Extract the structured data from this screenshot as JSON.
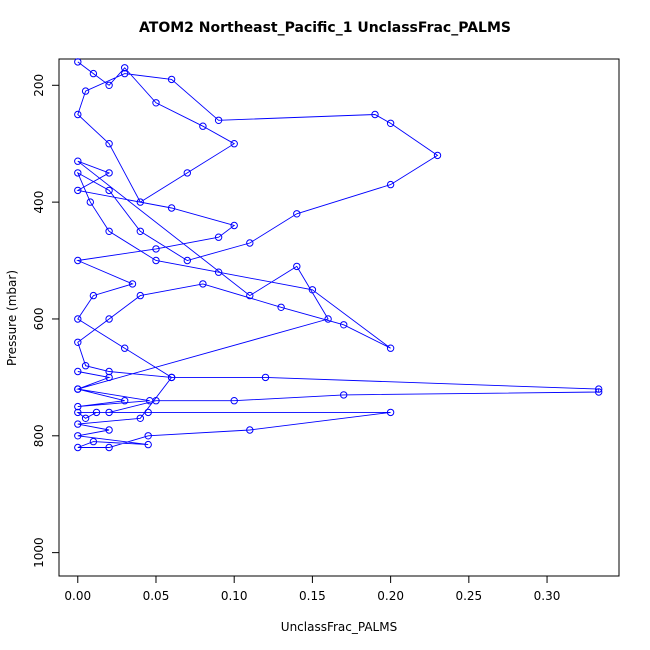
{
  "chart_data": {
    "type": "scatter",
    "title": "ATOM2 Northeast_Pacific_1 UnclassFrac_PALMS",
    "xlabel": "UnclassFrac_PALMS",
    "ylabel": "Pressure (mbar)",
    "xlim": [
      -0.012,
      0.346
    ],
    "ylim": [
      1040,
      155
    ],
    "y_reversed": true,
    "x_ticks": [
      "0.00",
      "0.05",
      "0.10",
      "0.15",
      "0.20",
      "0.25",
      "0.30"
    ],
    "y_ticks": [
      "200",
      "400",
      "600",
      "800",
      "1000"
    ],
    "marker": "open-circle",
    "connected": true,
    "grid": false,
    "color": "#0000ff",
    "series": [
      {
        "x": [
          0.0,
          0.01,
          0.02,
          0.03,
          0.05,
          0.08,
          0.1,
          0.07,
          0.04,
          0.02,
          0.0,
          0.005,
          0.03,
          0.06,
          0.09,
          0.19,
          0.2,
          0.23,
          0.2,
          0.14,
          0.11,
          0.07,
          0.04,
          0.02,
          0.0,
          0.008,
          0.02,
          0.05,
          0.09,
          0.15,
          0.2,
          0.17,
          0.13,
          0.08,
          0.04,
          0.02,
          0.0,
          0.005,
          0.02,
          0.06,
          0.12,
          0.333,
          0.333,
          0.17,
          0.1,
          0.05,
          0.02,
          0.0,
          0.005,
          0.012,
          0.045,
          0.2,
          0.11,
          0.045,
          0.02,
          0.0,
          0.01,
          0.045,
          0.0,
          0.02,
          0.0,
          0.04,
          0.06,
          0.03,
          0.0,
          0.01,
          0.035,
          0.0,
          0.05,
          0.09,
          0.1,
          0.06,
          0.0,
          0.02,
          0.0,
          0.11,
          0.14,
          0.16,
          0.0,
          0.03,
          0.0,
          0.046,
          0.0,
          0.02,
          0.0
        ],
        "y": [
          160,
          180,
          200,
          170,
          230,
          270,
          300,
          350,
          400,
          300,
          250,
          210,
          180,
          190,
          260,
          250,
          265,
          320,
          370,
          420,
          470,
          500,
          450,
          380,
          350,
          400,
          450,
          500,
          520,
          550,
          650,
          610,
          580,
          540,
          560,
          600,
          640,
          680,
          690,
          700,
          700,
          720,
          725,
          730,
          740,
          740,
          760,
          760,
          770,
          760,
          760,
          760,
          790,
          800,
          820,
          820,
          810,
          815,
          800,
          790,
          780,
          770,
          700,
          650,
          600,
          560,
          540,
          500,
          480,
          460,
          440,
          410,
          380,
          350,
          330,
          560,
          510,
          600,
          720,
          740,
          750,
          740,
          720,
          700,
          690
        ]
      }
    ]
  }
}
